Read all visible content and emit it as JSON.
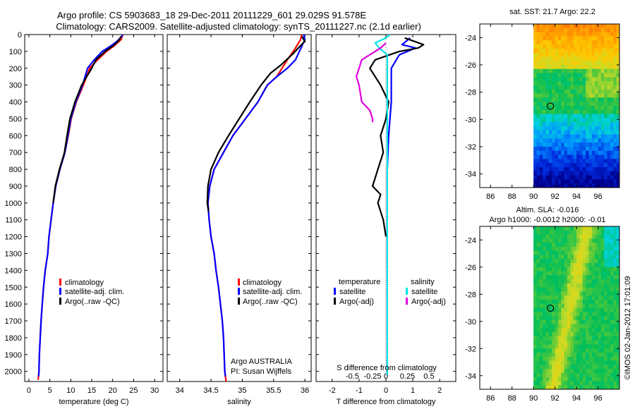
{
  "header": {
    "line1": "Argo profile: CS 5903683_18 29-Dec-2011 20111229_601 29.029S 91.578E",
    "line2": "Climatology: CARS2009. Satellite-adjusted climatology: synTS_20111227.nc (2.1d earlier)"
  },
  "colors": {
    "climatology": "#ff0000",
    "satellite": "#0000ff",
    "argo": "#000000",
    "sal_satellite": "#00e5e5",
    "sal_argo": "#e000e0"
  },
  "legend_labels": {
    "climatology": "climatology",
    "satellite_adj": "satellite-adj. clim.",
    "argo": "Argo(..raw -QC)",
    "temperature": "temperature",
    "salinity": "salinity",
    "satellite": "satellite",
    "argo_adj": "Argo(-adj)"
  },
  "chart_data": [
    {
      "type": "line",
      "id": "temperature",
      "xlabel": "temperature (deg C)",
      "ylabel": "",
      "xlim": [
        -1,
        32
      ],
      "ylim": [
        2060,
        0
      ],
      "xticks": [
        0,
        5,
        10,
        15,
        20,
        25,
        30
      ],
      "yticks": [
        0,
        100,
        200,
        300,
        400,
        500,
        600,
        700,
        800,
        900,
        1000,
        1100,
        1200,
        1300,
        1400,
        1500,
        1600,
        1700,
        1800,
        1900,
        2000
      ],
      "series": [
        {
          "name": "climatology",
          "color": "#ff0000",
          "x": [
            22.4,
            22.0,
            20.2,
            18.5,
            16.4,
            14.5,
            13.0,
            11.3,
            10.1,
            9.4,
            8.6,
            7.4,
            6.4,
            5.8,
            5.3,
            4.8,
            4.5,
            3.9,
            3.5,
            3.2,
            2.9,
            2.7,
            2.5,
            2.4,
            2.3,
            2.2
          ],
          "depth": [
            0,
            30,
            70,
            100,
            150,
            200,
            300,
            400,
            500,
            600,
            700,
            800,
            900,
            1000,
            1100,
            1200,
            1300,
            1400,
            1500,
            1600,
            1700,
            1800,
            1900,
            2000,
            2030,
            2050
          ]
        },
        {
          "name": "satellite-adj. clim.",
          "color": "#0000ff",
          "x": [
            22.3,
            22.2,
            21.0,
            19.4,
            17.5,
            15.6,
            14.0,
            12.8,
            11.2,
            10.0,
            9.3,
            8.6,
            7.4,
            6.4,
            5.8,
            5.3,
            4.8,
            4.5,
            3.9,
            3.5,
            3.2,
            2.9,
            2.7,
            2.5,
            2.4,
            2.3
          ],
          "depth": [
            0,
            10,
            40,
            70,
            100,
            150,
            200,
            300,
            400,
            500,
            600,
            700,
            800,
            900,
            1000,
            1100,
            1200,
            1300,
            1400,
            1500,
            1600,
            1700,
            1800,
            1900,
            2000,
            2030
          ]
        },
        {
          "name": "Argo(..raw -QC)",
          "color": "#000000",
          "x": [
            22.0,
            21.6,
            20.5,
            18.2,
            16.0,
            15.0,
            13.8,
            12.6,
            11.0,
            9.8,
            9.1,
            8.5,
            7.3,
            6.3,
            5.8
          ],
          "depth": [
            10,
            30,
            60,
            100,
            150,
            200,
            250,
            300,
            400,
            500,
            600,
            700,
            800,
            900,
            1000
          ]
        }
      ]
    },
    {
      "type": "line",
      "id": "salinity",
      "xlabel": "salinity",
      "xlim": [
        33.8,
        36.1
      ],
      "ylim": [
        2060,
        0
      ],
      "xticks": [
        34,
        34.5,
        35,
        35.5,
        36
      ],
      "annotation": [
        "Argo AUSTRALIA",
        "PI: Susan Wijffels"
      ],
      "series": [
        {
          "name": "climatology",
          "color": "#ff0000",
          "x": [
            35.95,
            35.93,
            35.85,
            35.72,
            35.55,
            35.4,
            35.25,
            35.05,
            34.85,
            34.7,
            34.55,
            34.48,
            34.45,
            34.47,
            34.5,
            34.55,
            34.58,
            34.62,
            34.65,
            34.68,
            34.7,
            34.71,
            34.72,
            34.73,
            34.74
          ],
          "depth": [
            0,
            30,
            80,
            150,
            250,
            300,
            400,
            500,
            600,
            700,
            800,
            900,
            1000,
            1100,
            1200,
            1300,
            1400,
            1500,
            1600,
            1700,
            1800,
            1900,
            2000,
            2030,
            2060
          ]
        },
        {
          "name": "satellite-adj. clim.",
          "color": "#0000ff",
          "x": [
            35.98,
            36.0,
            35.95,
            35.85,
            35.72,
            35.55,
            35.4,
            35.25,
            35.05,
            34.85,
            34.7,
            34.55,
            34.48,
            34.45,
            34.47,
            34.5,
            34.55,
            34.58,
            34.62,
            34.65,
            34.68,
            34.7,
            34.71,
            34.72,
            34.73
          ],
          "depth": [
            0,
            30,
            70,
            150,
            200,
            250,
            300,
            400,
            500,
            600,
            700,
            800,
            900,
            1000,
            1100,
            1200,
            1300,
            1400,
            1500,
            1600,
            1700,
            1800,
            1900,
            2000,
            2030
          ]
        },
        {
          "name": "Argo(..raw -QC)",
          "color": "#000000",
          "x": [
            35.95,
            36.0,
            35.92,
            35.82,
            35.62,
            35.45,
            35.3,
            35.12,
            34.95,
            34.78,
            34.62,
            34.5,
            34.45,
            34.44,
            34.46
          ],
          "depth": [
            10,
            40,
            70,
            110,
            180,
            230,
            300,
            400,
            500,
            600,
            700,
            800,
            900,
            1000,
            1050
          ]
        }
      ]
    },
    {
      "type": "line",
      "id": "difference",
      "xlabel": "T difference from climatology",
      "xlabel_top": "S difference from climatology",
      "xlim": [
        -2.6,
        2.6
      ],
      "ylim": [
        2060,
        0
      ],
      "xticks": [
        -2,
        -1,
        0,
        1,
        2
      ],
      "xticks_s": [
        "-0.5",
        "-0.25",
        "0",
        "0.25",
        "0.5"
      ],
      "series": [
        {
          "name": "temperature satellite",
          "color": "#0000ff",
          "x": [
            0.9,
            0.6,
            1.1,
            0.5,
            0.2,
            0.2,
            0.1,
            0.05,
            0.05,
            0.05,
            0.05,
            0.05,
            0.05
          ],
          "depth": [
            20,
            60,
            80,
            120,
            200,
            400,
            600,
            800,
            1000,
            1200,
            1600,
            2000,
            2020
          ]
        },
        {
          "name": "temperature Argo(-adj)",
          "color": "#000000",
          "x": [
            0.7,
            1.4,
            1.2,
            0.5,
            -0.4,
            -0.6,
            -0.2,
            0.1,
            0.0,
            -0.2,
            -0.1,
            -0.3,
            -0.5,
            -0.2,
            -0.3,
            -0.1,
            0.0
          ],
          "depth": [
            20,
            60,
            80,
            100,
            150,
            200,
            300,
            400,
            500,
            600,
            700,
            800,
            900,
            950,
            1000,
            1100,
            1200
          ]
        },
        {
          "name": "salinity satellite",
          "color": "#00e5e5",
          "x": [
            0.15,
            0.0,
            -0.4,
            -0.25,
            0.05,
            0.05,
            0.05,
            0.05,
            0.05,
            0.05,
            0.05,
            0.05,
            0.05
          ],
          "depth": [
            0,
            20,
            50,
            80,
            120,
            300,
            500,
            800,
            1000,
            1300,
            1600,
            1900,
            2020
          ]
        },
        {
          "name": "salinity Argo(-adj)",
          "color": "#e000e0",
          "x": [
            0.0,
            -0.2,
            -0.4,
            -0.9,
            -1.0,
            -1.1,
            -1.0,
            -0.9,
            -0.6,
            -0.5,
            -0.5
          ],
          "depth": [
            50,
            80,
            100,
            150,
            200,
            250,
            300,
            400,
            450,
            500,
            520
          ]
        }
      ]
    },
    {
      "type": "heatmap",
      "id": "sst_map",
      "title": "sat. SST: 21.7 Argo: 22.2",
      "xlim": [
        85,
        98
      ],
      "ylim": [
        -35,
        -23
      ],
      "xticks": [
        86,
        88,
        90,
        92,
        94,
        96
      ],
      "yticks": [
        -24,
        -26,
        -28,
        -30,
        -32,
        -34
      ],
      "data_lon_range": [
        90,
        98
      ],
      "argo_position": {
        "lat": -29.029,
        "lon": 91.578
      }
    },
    {
      "type": "heatmap",
      "id": "sla_map",
      "title": "Altim. SLA: -0.016",
      "subtitle": "Argo h1000: -0.0012 h2000: -0.01",
      "xlim": [
        85,
        98
      ],
      "ylim": [
        -35,
        -23
      ],
      "xticks": [
        86,
        88,
        90,
        92,
        94,
        96
      ],
      "yticks": [
        -24,
        -26,
        -28,
        -30,
        -32,
        -34
      ],
      "data_lon_range": [
        90,
        98
      ],
      "argo_position": {
        "lat": -29.029,
        "lon": 91.578
      }
    }
  ],
  "credit": "©IMOS 02-Jan-2012 17:01:09"
}
